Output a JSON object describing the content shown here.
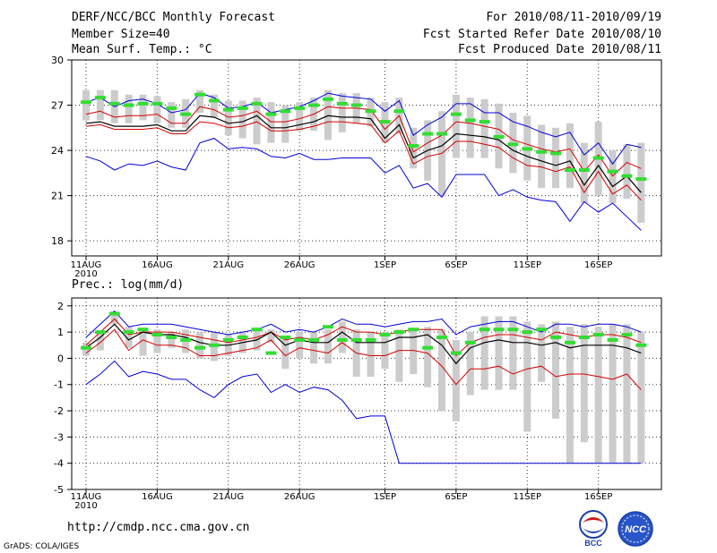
{
  "header": {
    "left": [
      "DERF/NCC/BCC Monthly Forecast",
      "Member Size=40",
      "Mean Surf. Temp.: °C"
    ],
    "right": [
      "For 2010/08/11-2010/09/19",
      "Fcst Started Refer Date 2010/08/10",
      "Fcst Produced Date 2010/08/11"
    ]
  },
  "footer": {
    "url": "http://cmdp.ncc.cma.gov.cn",
    "grads": "GrADS: COLA/IGES",
    "logo1_text": "BCC",
    "logo2_text": "NCC"
  },
  "colors": {
    "mean": "#000000",
    "spread": "#d40000",
    "extreme": "#0000d8",
    "box": "#cccccc",
    "obs": "#33dd33",
    "grid": "#333333"
  },
  "chart_data": [
    {
      "type": "line",
      "title": "Mean Surf. Temp.: °C",
      "ylim": [
        17,
        30
      ],
      "yticks": [
        18,
        21,
        24,
        27,
        30
      ],
      "x_tick_labels": [
        "11AUG",
        "16AUG",
        "21AUG",
        "26AUG",
        "1SEP",
        "6SEP",
        "11SEP",
        "16SEP"
      ],
      "x_tick_days": [
        0,
        5,
        10,
        15,
        21,
        26,
        31,
        36
      ],
      "year_label": "2010",
      "days": 40,
      "series": [
        {
          "name": "max",
          "values": [
            27.2,
            27.5,
            26.9,
            27.3,
            27.4,
            27.1,
            26.5,
            26.7,
            27.8,
            27.5,
            26.8,
            26.9,
            27.2,
            26.5,
            26.7,
            26.9,
            27.3,
            27.8,
            27.6,
            27.5,
            27.4,
            26.6,
            27.3,
            25.0,
            25.7,
            26.2,
            27.1,
            27.1,
            26.5,
            26.5,
            25.9,
            25.6,
            25.2,
            24.9,
            25.2,
            23.7,
            24.5,
            23.1,
            24.4,
            24.2
          ]
        },
        {
          "name": "upper",
          "values": [
            26.4,
            26.6,
            26.2,
            26.3,
            26.3,
            26.4,
            25.8,
            25.8,
            26.9,
            26.7,
            26.2,
            26.3,
            26.6,
            25.9,
            25.9,
            26.1,
            26.4,
            26.9,
            26.8,
            26.8,
            26.7,
            25.4,
            26.3,
            23.9,
            24.5,
            25.0,
            25.9,
            25.8,
            25.6,
            25.4,
            24.7,
            24.4,
            24.1,
            23.9,
            24.1,
            22.6,
            23.7,
            22.3,
            23.2,
            22.8
          ]
        },
        {
          "name": "mean",
          "values": [
            25.8,
            25.9,
            25.6,
            25.6,
            25.6,
            25.7,
            25.3,
            25.3,
            26.3,
            26.2,
            25.8,
            25.9,
            26.3,
            25.5,
            25.5,
            25.7,
            25.9,
            26.3,
            26.2,
            26.2,
            26.1,
            24.8,
            25.7,
            23.5,
            24.0,
            24.3,
            25.1,
            25.0,
            24.9,
            24.7,
            24.0,
            23.6,
            23.3,
            23.0,
            23.3,
            21.7,
            23.0,
            21.6,
            22.3,
            21.2
          ]
        },
        {
          "name": "lower",
          "values": [
            25.6,
            25.7,
            25.4,
            25.4,
            25.4,
            25.5,
            25.1,
            25.1,
            25.9,
            25.8,
            25.5,
            25.6,
            25.9,
            25.3,
            25.3,
            25.4,
            25.6,
            25.9,
            25.9,
            25.8,
            25.7,
            24.5,
            25.3,
            23.1,
            23.6,
            23.8,
            24.6,
            24.6,
            24.4,
            24.2,
            23.5,
            23.0,
            22.9,
            22.6,
            22.9,
            21.2,
            22.6,
            21.1,
            21.7,
            20.7
          ]
        },
        {
          "name": "min",
          "values": [
            23.6,
            23.3,
            22.7,
            23.1,
            23.0,
            23.3,
            22.9,
            22.7,
            24.5,
            24.8,
            24.1,
            24.2,
            24.1,
            23.6,
            23.5,
            23.8,
            23.4,
            23.4,
            23.5,
            23.5,
            23.5,
            22.5,
            23.0,
            21.5,
            21.8,
            20.9,
            22.4,
            22.4,
            22.4,
            21.0,
            21.4,
            20.9,
            20.7,
            20.6,
            19.3,
            20.6,
            19.9,
            20.5,
            19.6,
            18.7
          ]
        },
        {
          "name": "box_top",
          "values": [
            28.0,
            28.0,
            28.0,
            27.7,
            27.7,
            27.6,
            27.2,
            27.4,
            28.0,
            27.7,
            27.3,
            27.3,
            27.5,
            27.2,
            27.0,
            27.2,
            27.5,
            28.0,
            27.8,
            27.8,
            27.5,
            27.2,
            27.5,
            25.5,
            26.0,
            26.6,
            27.7,
            27.5,
            27.4,
            27.1,
            26.5,
            26.3,
            25.7,
            25.5,
            25.8,
            24.5,
            25.9,
            24.0,
            24.4,
            24.5
          ]
        },
        {
          "name": "box_bottom",
          "values": [
            26.0,
            26.0,
            25.8,
            25.8,
            26.0,
            25.8,
            25.5,
            25.5,
            26.5,
            26.2,
            25.0,
            24.8,
            24.4,
            24.5,
            24.5,
            25.3,
            25.3,
            24.7,
            25.2,
            25.8,
            25.6,
            24.5,
            25.1,
            22.8,
            22.0,
            21.0,
            23.5,
            23.5,
            23.5,
            22.8,
            22.5,
            22.0,
            21.5,
            21.5,
            21.5,
            20.5,
            21.0,
            20.5,
            20.8,
            19.2
          ]
        },
        {
          "name": "obs",
          "values": [
            27.2,
            27.5,
            27.1,
            27.0,
            27.1,
            27.1,
            26.8,
            26.4,
            27.7,
            27.3,
            26.7,
            26.8,
            27.1,
            26.4,
            26.6,
            26.8,
            27.0,
            27.4,
            27.1,
            27.0,
            26.6,
            25.9,
            26.6,
            24.3,
            25.1,
            25.1,
            26.4,
            26.0,
            25.9,
            24.9,
            24.4,
            24.1,
            23.9,
            23.8,
            22.7,
            22.7,
            23.5,
            22.6,
            22.3,
            22.1
          ]
        }
      ]
    },
    {
      "type": "line",
      "title": "Prec.: log(mm/d)",
      "ylim": [
        -5,
        2.3
      ],
      "yticks": [
        -5,
        -4,
        -3,
        -2,
        -1,
        0,
        1,
        2
      ],
      "x_tick_labels": [
        "11AUG",
        "16AUG",
        "21AUG",
        "26AUG",
        "1SEP",
        "6SEP",
        "11SEP",
        "16SEP"
      ],
      "x_tick_days": [
        0,
        5,
        10,
        15,
        21,
        26,
        31,
        36
      ],
      "year_label": "2010",
      "days": 40,
      "series": [
        {
          "name": "max",
          "values": [
            0.8,
            1.3,
            1.8,
            1.2,
            1.3,
            1.3,
            1.3,
            1.2,
            1.1,
            1.0,
            0.9,
            1.0,
            1.1,
            1.3,
            1.0,
            1.1,
            1.0,
            1.2,
            1.5,
            1.3,
            1.3,
            1.2,
            1.3,
            1.4,
            1.4,
            1.5,
            0.9,
            1.2,
            1.3,
            1.4,
            1.4,
            1.2,
            1.0,
            1.3,
            1.3,
            1.2,
            1.3,
            1.3,
            1.2,
            1.0
          ]
        },
        {
          "name": "upper",
          "values": [
            0.5,
            1.0,
            1.5,
            0.9,
            1.0,
            1.0,
            1.0,
            0.9,
            0.8,
            0.7,
            0.6,
            0.7,
            0.8,
            1.0,
            0.7,
            0.8,
            0.7,
            0.9,
            1.2,
            1.0,
            1.0,
            0.9,
            1.0,
            1.1,
            1.1,
            1.1,
            0.1,
            0.6,
            0.8,
            0.9,
            0.9,
            0.8,
            0.7,
            1.0,
            0.9,
            0.8,
            0.9,
            0.9,
            0.8,
            0.6
          ]
        },
        {
          "name": "mean",
          "values": [
            0.4,
            0.8,
            1.3,
            0.7,
            1.0,
            0.9,
            0.9,
            0.8,
            0.6,
            0.5,
            0.5,
            0.6,
            0.7,
            1.0,
            0.5,
            0.7,
            0.6,
            0.6,
            1.0,
            0.6,
            0.6,
            0.6,
            0.8,
            0.8,
            0.9,
            0.5,
            -0.2,
            0.4,
            0.6,
            0.7,
            0.6,
            0.6,
            0.5,
            0.6,
            0.4,
            0.5,
            0.5,
            0.5,
            0.4,
            0.2
          ]
        },
        {
          "name": "lower",
          "values": [
            0.2,
            0.6,
            1.1,
            0.3,
            0.7,
            0.5,
            0.5,
            0.4,
            0.1,
            0.1,
            0.2,
            0.3,
            0.4,
            0.7,
            0.1,
            0.4,
            0.3,
            0.2,
            0.6,
            0.2,
            0.1,
            0.1,
            0.3,
            0.3,
            0.2,
            -0.3,
            -1.0,
            -0.4,
            -0.4,
            -0.3,
            -0.6,
            -0.4,
            -0.3,
            -0.7,
            -0.6,
            -0.6,
            -0.7,
            -0.8,
            -0.6,
            -1.2
          ]
        },
        {
          "name": "min",
          "values": [
            -1.0,
            -0.6,
            -0.1,
            -0.7,
            -0.5,
            -0.6,
            -0.8,
            -0.8,
            -1.2,
            -1.5,
            -1.0,
            -0.7,
            -0.6,
            -1.3,
            -1.0,
            -1.3,
            -1.1,
            -1.2,
            -1.6,
            -2.3,
            -2.2,
            -2.2,
            -4.0,
            -4.0,
            -4.0,
            -4.0,
            -4.0,
            -4.0,
            -4.0,
            -4.0,
            -4.0,
            -4.0,
            -4.0,
            -4.0,
            -4.0,
            -4.0,
            -4.0,
            -4.0,
            -4.0,
            -4.0
          ]
        },
        {
          "name": "box_top",
          "values": [
            0.6,
            1.0,
            1.8,
            1.2,
            1.1,
            1.1,
            1.0,
            1.1,
            1.0,
            1.0,
            0.9,
            1.0,
            1.1,
            1.1,
            0.8,
            1.0,
            1.0,
            1.1,
            1.4,
            1.1,
            1.0,
            1.0,
            1.1,
            1.1,
            1.2,
            1.1,
            0.7,
            1.0,
            1.6,
            1.6,
            1.6,
            1.4,
            1.3,
            1.4,
            1.2,
            1.3,
            1.2,
            1.3,
            1.3,
            1.0
          ]
        },
        {
          "name": "box_bottom",
          "values": [
            0.1,
            0.3,
            1.3,
            0.4,
            0.1,
            0.2,
            0.4,
            0.2,
            0.0,
            -0.1,
            0.1,
            0.2,
            0.3,
            0.6,
            -0.4,
            0.0,
            -0.2,
            -0.2,
            0.2,
            -0.7,
            -0.7,
            -0.4,
            -0.9,
            -0.6,
            -1.1,
            -2.0,
            -2.4,
            -1.4,
            -1.2,
            -1.2,
            -1.2,
            -2.8,
            -0.9,
            -2.3,
            -4.0,
            -3.2,
            -4.0,
            -4.0,
            -4.0,
            -4.0
          ]
        },
        {
          "name": "obs",
          "values": [
            0.4,
            1.0,
            1.7,
            1.0,
            1.1,
            0.9,
            0.8,
            0.7,
            0.4,
            0.5,
            0.7,
            0.8,
            1.1,
            0.2,
            0.8,
            0.7,
            0.7,
            1.2,
            0.7,
            0.7,
            0.7,
            0.9,
            1.0,
            1.1,
            0.4,
            0.8,
            0.2,
            0.6,
            1.1,
            1.1,
            1.1,
            1.0,
            1.1,
            0.8,
            0.6,
            0.8,
            0.9,
            0.7,
            0.9,
            0.5
          ]
        }
      ]
    }
  ]
}
